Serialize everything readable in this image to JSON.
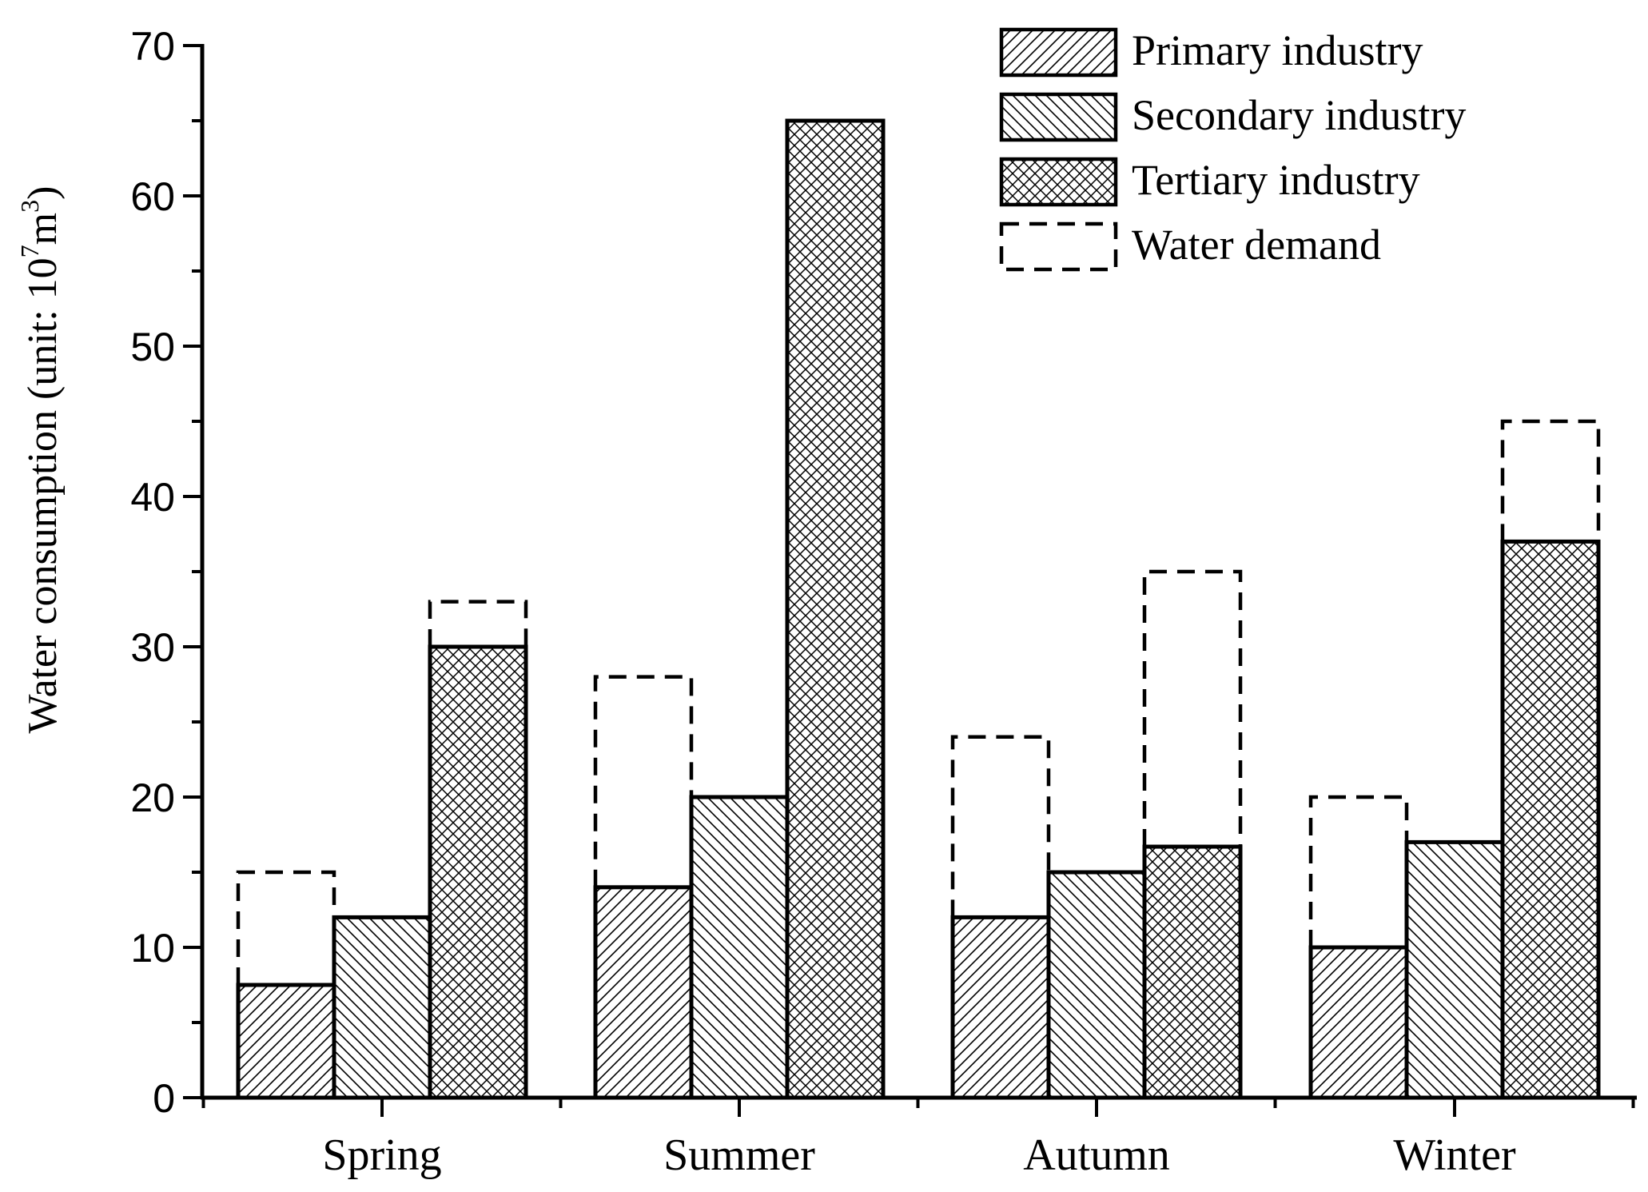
{
  "chart_data": {
    "type": "bar",
    "categories": [
      "Spring",
      "Summer",
      "Autumn",
      "Winter"
    ],
    "series": [
      {
        "name": "Primary industry",
        "pattern": "hatch-forward",
        "values": [
          7.5,
          14,
          12,
          10
        ]
      },
      {
        "name": "Secondary industry",
        "pattern": "hatch-backward",
        "values": [
          12,
          20,
          15,
          17
        ]
      },
      {
        "name": "Tertiary industry",
        "pattern": "crosshatch",
        "values": [
          30,
          65,
          16.7,
          37
        ]
      }
    ],
    "water_demand": {
      "name": "Water demand",
      "style": "dashed-outline",
      "values": [
        [
          15,
          12,
          33
        ],
        [
          28,
          20,
          65
        ],
        [
          24,
          15,
          35
        ],
        [
          20,
          17,
          45
        ]
      ]
    },
    "ylabel": {
      "main": "Water consumption (unit: 10",
      "exp1": "7",
      "mid": "m",
      "exp2": "3",
      "end": ")"
    },
    "xlabel": "",
    "ylim": [
      0,
      70
    ],
    "yticks": [
      0,
      10,
      20,
      30,
      40,
      50,
      60,
      70
    ],
    "legend_position": "top-right",
    "grid": false,
    "bar_color": "#000000",
    "background": "#ffffff"
  }
}
